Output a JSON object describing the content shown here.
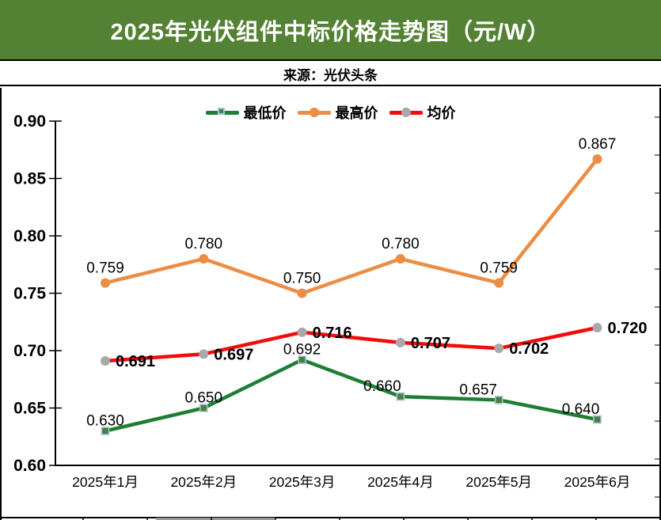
{
  "header": {
    "title": "2025年光伏组件中标价格走势图（元/W）",
    "bg_color": "#548235",
    "title_color": "#ffffff"
  },
  "source": {
    "label": "来源：光伏头条"
  },
  "chart_data": {
    "type": "line",
    "title": "2025年光伏组件中标价格走势图（元/W）",
    "xlabel": "",
    "ylabel": "",
    "categories": [
      "2025年1月",
      "2025年2月",
      "2025年3月",
      "2025年4月",
      "2025年5月",
      "2025年6月"
    ],
    "series": [
      {
        "name": "最低价",
        "values": [
          0.63,
          0.65,
          0.692,
          0.66,
          0.657,
          0.64
        ],
        "labels": [
          "0.630",
          "0.650",
          "0.692",
          "0.660",
          "0.657",
          "0.640"
        ],
        "color": "#1e7e33",
        "marker": "square",
        "marker_fill": "#4e7e35",
        "marker_border": "#9dc3e6",
        "label_weight": "normal",
        "label_position": "above"
      },
      {
        "name": "最高价",
        "values": [
          0.759,
          0.78,
          0.75,
          0.78,
          0.759,
          0.867
        ],
        "labels": [
          "0.759",
          "0.780",
          "0.750",
          "0.780",
          "0.759",
          "0.867"
        ],
        "color": "#ed8c43",
        "marker": "circle",
        "marker_fill": "#ed8c43",
        "marker_border": "none",
        "label_weight": "normal",
        "label_position": "above"
      },
      {
        "name": "均价",
        "values": [
          0.691,
          0.697,
          0.716,
          0.707,
          0.702,
          0.72
        ],
        "labels": [
          "0.691",
          "0.697",
          "0.716",
          "0.707",
          "0.702",
          "0.720"
        ],
        "color": "#f40b0b",
        "marker": "circle",
        "marker_fill": "#a9a9a9",
        "marker_border": "none",
        "label_weight": "bold",
        "label_position": "right"
      }
    ],
    "ylim": [
      0.6,
      0.9
    ],
    "ytick_step": 0.05,
    "ytick_labels": [
      "0.60",
      "0.65",
      "0.70",
      "0.75",
      "0.80",
      "0.85",
      "0.90"
    ],
    "grid": false,
    "legend_position": "top-center",
    "axis_color": "#000000"
  }
}
